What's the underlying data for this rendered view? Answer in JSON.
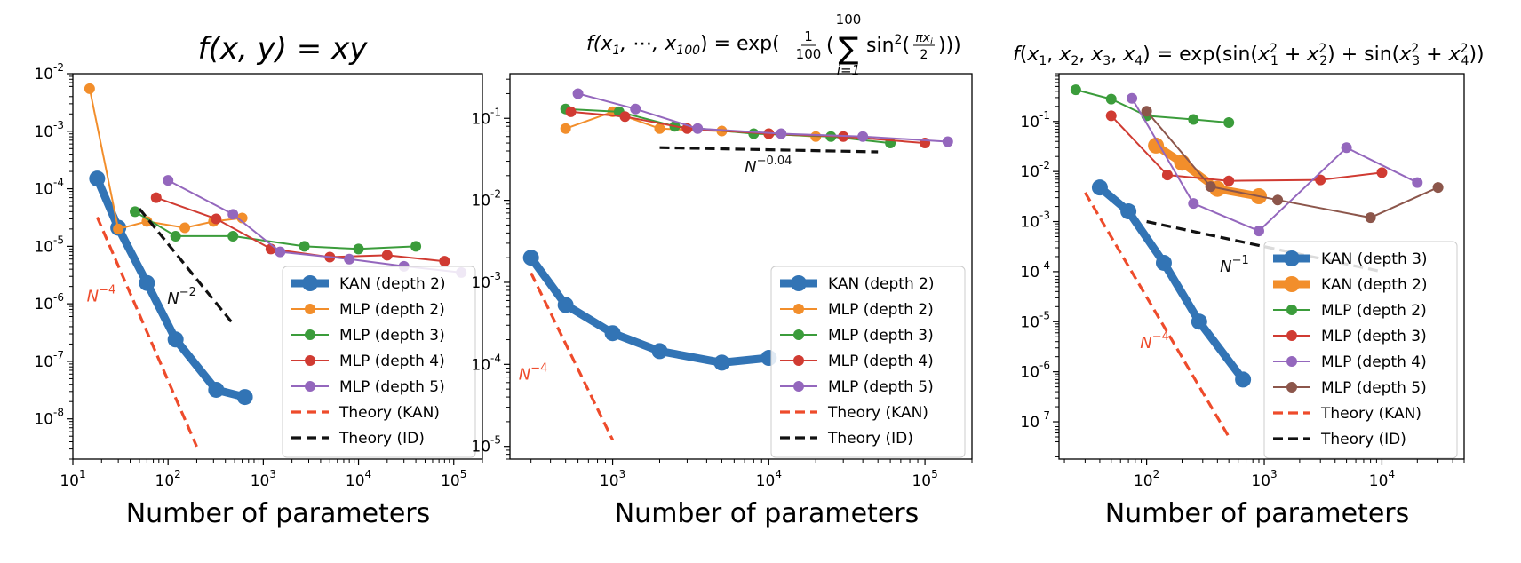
{
  "chart_data": [
    {
      "type": "line",
      "title": "f(x, y) = xy",
      "xlabel": "Number of parameters",
      "ylabel": "",
      "x_scale": "log",
      "y_scale": "log",
      "xlim": [
        10,
        200000
      ],
      "ylim": [
        2e-09,
        0.01
      ],
      "xticks": [
        {
          "label": "10",
          "exp": "1",
          "value": 10
        },
        {
          "label": "10",
          "exp": "2",
          "value": 100
        },
        {
          "label": "10",
          "exp": "3",
          "value": 1000
        },
        {
          "label": "10",
          "exp": "4",
          "value": 10000
        },
        {
          "label": "10",
          "exp": "5",
          "value": 100000
        }
      ],
      "yticks": [
        {
          "label": "10",
          "exp": "-8",
          "value": 1e-08
        },
        {
          "label": "10",
          "exp": "-7",
          "value": 1e-07
        },
        {
          "label": "10",
          "exp": "-6",
          "value": 1e-06
        },
        {
          "label": "10",
          "exp": "-5",
          "value": 1e-05
        },
        {
          "label": "10",
          "exp": "-4",
          "value": 0.0001
        },
        {
          "label": "10",
          "exp": "-3",
          "value": 0.001
        },
        {
          "label": "10",
          "exp": "-2",
          "value": 0.01
        }
      ],
      "legend_position": "lower-right",
      "series": [
        {
          "name": "KAN (depth 2)",
          "color": "#3274b5",
          "style": "thick",
          "x": [
            18,
            30,
            60,
            120,
            320,
            640
          ],
          "y": [
            0.00015,
            2.1e-05,
            2.3e-06,
            2.4e-07,
            3.2e-08,
            2.4e-08
          ]
        },
        {
          "name": "MLP (depth 2)",
          "color": "#f28e2b",
          "style": "thin",
          "x": [
            15,
            30,
            60,
            150,
            300,
            600
          ],
          "y": [
            0.0055,
            2e-05,
            2.7e-05,
            2.1e-05,
            2.7e-05,
            3.1e-05
          ]
        },
        {
          "name": "MLP (depth 3)",
          "color": "#3b9c3b",
          "style": "thin",
          "x": [
            45,
            120,
            480,
            2700,
            10000,
            40000
          ],
          "y": [
            4e-05,
            1.5e-05,
            1.5e-05,
            1e-05,
            9e-06,
            1e-05
          ]
        },
        {
          "name": "MLP (depth 4)",
          "color": "#d03b32",
          "style": "thin",
          "x": [
            75,
            320,
            1200,
            5000,
            20000,
            80000
          ],
          "y": [
            7e-05,
            3e-05,
            9e-06,
            6.5e-06,
            7e-06,
            5.5e-06
          ]
        },
        {
          "name": "MLP (depth 5)",
          "color": "#9467bd",
          "style": "thin",
          "x": [
            100,
            480,
            1500,
            8000,
            30000,
            120000
          ],
          "y": [
            0.00014,
            3.6e-05,
            8e-06,
            6e-06,
            4.5e-06,
            3.5e-06
          ]
        },
        {
          "name": "Theory (KAN)",
          "color": "#ee4b2b",
          "style": "dash",
          "x": [
            18,
            200
          ],
          "y": [
            3.2e-05,
            3.3e-09
          ]
        },
        {
          "name": "Theory (ID)",
          "color": "#111111",
          "style": "dash",
          "x": [
            50,
            480
          ],
          "y": [
            4.5e-05,
            4.5e-07
          ]
        }
      ],
      "annotations": [
        {
          "base": "N",
          "exp": "−4",
          "color": "#ee4b2b",
          "x": 14,
          "y": 1.1e-06
        },
        {
          "base": "N",
          "exp": "−2",
          "color": "#111111",
          "x": 98,
          "y": 1e-06
        }
      ]
    },
    {
      "type": "line",
      "title": "f(x1, ⋯, x100) = exp(1/100 Σ sin²(πxi/2))",
      "xlabel": "Number of parameters",
      "ylabel": "",
      "x_scale": "log",
      "y_scale": "log",
      "xlim": [
        220,
        200000
      ],
      "ylim": [
        7e-06,
        0.35
      ],
      "xticks": [
        {
          "label": "10",
          "exp": "3",
          "value": 1000
        },
        {
          "label": "10",
          "exp": "4",
          "value": 10000
        },
        {
          "label": "10",
          "exp": "5",
          "value": 100000
        }
      ],
      "yticks": [
        {
          "label": "10",
          "exp": "-5",
          "value": 1e-05
        },
        {
          "label": "10",
          "exp": "-4",
          "value": 0.0001
        },
        {
          "label": "10",
          "exp": "-3",
          "value": 0.001
        },
        {
          "label": "10",
          "exp": "-2",
          "value": 0.01
        },
        {
          "label": "10",
          "exp": "-1",
          "value": 0.1
        }
      ],
      "legend_position": "lower-right",
      "series": [
        {
          "name": "KAN (depth 2)",
          "color": "#3274b5",
          "style": "thick",
          "x": [
            300,
            500,
            1000,
            2000,
            5000,
            10000
          ],
          "y": [
            0.002,
            0.00053,
            0.00024,
            0.000145,
            0.000105,
            0.00012
          ]
        },
        {
          "name": "MLP (depth 2)",
          "color": "#f28e2b",
          "style": "thin",
          "x": [
            500,
            1000,
            2000,
            5000,
            10000,
            20000
          ],
          "y": [
            0.075,
            0.12,
            0.075,
            0.07,
            0.065,
            0.06
          ]
        },
        {
          "name": "MLP (depth 3)",
          "color": "#3b9c3b",
          "style": "thin",
          "x": [
            500,
            1100,
            2500,
            8000,
            25000,
            60000
          ],
          "y": [
            0.13,
            0.12,
            0.08,
            0.065,
            0.06,
            0.05
          ]
        },
        {
          "name": "MLP (depth 4)",
          "color": "#d03b32",
          "style": "thin",
          "x": [
            540,
            1200,
            3000,
            10000,
            30000,
            100000
          ],
          "y": [
            0.12,
            0.105,
            0.075,
            0.065,
            0.06,
            0.05
          ]
        },
        {
          "name": "MLP (depth 5)",
          "color": "#9467bd",
          "style": "thin",
          "x": [
            600,
            1400,
            3500,
            12000,
            40000,
            140000
          ],
          "y": [
            0.2,
            0.13,
            0.075,
            0.065,
            0.06,
            0.052
          ]
        },
        {
          "name": "Theory (KAN)",
          "color": "#ee4b2b",
          "style": "dash",
          "x": [
            300,
            1000
          ],
          "y": [
            0.0013,
            1.2e-05
          ]
        },
        {
          "name": "Theory (ID)",
          "color": "#111111",
          "style": "dash",
          "x": [
            2000,
            50000
          ],
          "y": [
            0.044,
            0.039
          ]
        }
      ],
      "annotations": [
        {
          "base": "N",
          "exp": "−4",
          "color": "#ee4b2b",
          "x": 250,
          "y": 6.5e-05
        },
        {
          "base": "N",
          "exp": "−0.04",
          "color": "#111111",
          "x": 7000,
          "y": 0.022
        }
      ]
    },
    {
      "type": "line",
      "title": "f(x1, x2, x3, x4) = exp(sin(x1² + x2²) + sin(x3² + x4²))",
      "xlabel": "Number of parameters",
      "ylabel": "",
      "x_scale": "log",
      "y_scale": "log",
      "xlim": [
        18,
        50000
      ],
      "ylim": [
        1.8e-08,
        0.9
      ],
      "xticks": [
        {
          "label": "10",
          "exp": "2",
          "value": 100
        },
        {
          "label": "10",
          "exp": "3",
          "value": 1000
        },
        {
          "label": "10",
          "exp": "4",
          "value": 10000
        }
      ],
      "yticks": [
        {
          "label": "10",
          "exp": "-7",
          "value": 1e-07
        },
        {
          "label": "10",
          "exp": "-6",
          "value": 1e-06
        },
        {
          "label": "10",
          "exp": "-5",
          "value": 1e-05
        },
        {
          "label": "10",
          "exp": "-4",
          "value": 0.0001
        },
        {
          "label": "10",
          "exp": "-3",
          "value": 0.001
        },
        {
          "label": "10",
          "exp": "-2",
          "value": 0.01
        },
        {
          "label": "10",
          "exp": "-1",
          "value": 0.1
        }
      ],
      "legend_position": "lower-right",
      "series": [
        {
          "name": "KAN (depth 3)",
          "color": "#3274b5",
          "style": "thick",
          "x": [
            40,
            70,
            140,
            280,
            660
          ],
          "y": [
            0.0048,
            0.0016,
            0.00015,
            1e-05,
            7e-07
          ]
        },
        {
          "name": "KAN (depth 2)",
          "color": "#f28e2b",
          "style": "thick",
          "x": [
            120,
            200,
            400,
            900
          ],
          "y": [
            0.033,
            0.015,
            0.0045,
            0.0032
          ]
        },
        {
          "name": "MLP (depth 2)",
          "color": "#3b9c3b",
          "style": "thin",
          "x": [
            25,
            50,
            100,
            250,
            500
          ],
          "y": [
            0.43,
            0.28,
            0.13,
            0.11,
            0.095
          ]
        },
        {
          "name": "MLP (depth 3)",
          "color": "#d03b32",
          "style": "thin",
          "x": [
            50,
            150,
            500,
            3000,
            10000
          ],
          "y": [
            0.13,
            0.0085,
            0.0065,
            0.0068,
            0.0095
          ]
        },
        {
          "name": "MLP (depth 4)",
          "color": "#9467bd",
          "style": "thin",
          "x": [
            75,
            250,
            900,
            5000,
            20000
          ],
          "y": [
            0.29,
            0.0023,
            0.00065,
            0.03,
            0.006
          ]
        },
        {
          "name": "MLP (depth 5)",
          "color": "#8c564b",
          "style": "thin",
          "x": [
            100,
            350,
            1300,
            8000,
            30000
          ],
          "y": [
            0.16,
            0.005,
            0.0027,
            0.0012,
            0.0048
          ]
        },
        {
          "name": "Theory (KAN)",
          "color": "#ee4b2b",
          "style": "dash",
          "x": [
            30,
            500
          ],
          "y": [
            0.0038,
            5e-08
          ]
        },
        {
          "name": "Theory (ID)",
          "color": "#111111",
          "style": "dash",
          "x": [
            100,
            10000
          ],
          "y": [
            0.001,
            0.0001
          ]
        }
      ],
      "annotations": [
        {
          "base": "N",
          "exp": "−4",
          "color": "#ee4b2b",
          "x": 88,
          "y": 3e-06
        },
        {
          "base": "N",
          "exp": "−1",
          "color": "#111111",
          "x": 420,
          "y": 0.0001
        }
      ]
    }
  ]
}
